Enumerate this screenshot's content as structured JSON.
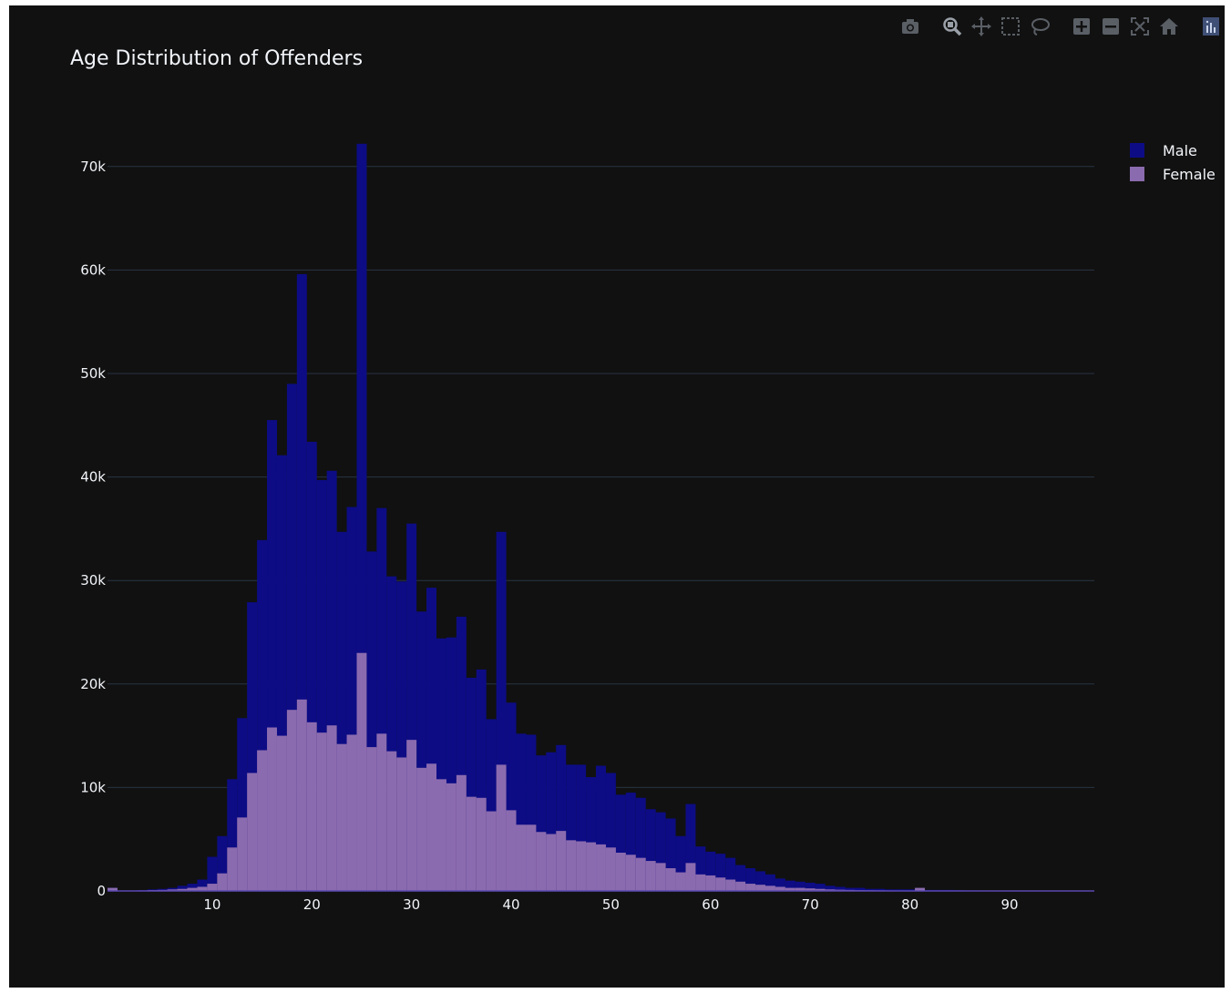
{
  "colors": {
    "background": "#111111",
    "grid": "#283442",
    "text": "#f2f5fa",
    "male": "#0d0c85",
    "female": "#8b6baf",
    "modebar_icon": "#5a5f66"
  },
  "toolbar": {
    "icons": [
      "camera-icon",
      "zoom-icon",
      "pan-icon",
      "box-select-icon",
      "lasso-select-icon",
      "zoom-in-icon",
      "zoom-out-icon",
      "autoscale-icon",
      "reset-axes-icon",
      "plotly-logo-icon"
    ]
  },
  "chart_data": {
    "type": "bar",
    "title": "Age Distribution of Offenders",
    "xlabel": "",
    "ylabel": "",
    "barmode": "overlay",
    "xlim": [
      0,
      99
    ],
    "ylim": [
      0,
      75000
    ],
    "x_ticks": [
      10,
      20,
      30,
      40,
      50,
      60,
      70,
      80,
      90
    ],
    "y_ticks": [
      0,
      10000,
      20000,
      30000,
      40000,
      50000,
      60000,
      70000
    ],
    "y_tick_labels": [
      "0",
      "10k",
      "20k",
      "30k",
      "40k",
      "50k",
      "60k",
      "70k"
    ],
    "grid": true,
    "legend_position": "top-right",
    "x": [
      0,
      1,
      2,
      3,
      4,
      5,
      6,
      7,
      8,
      9,
      10,
      11,
      12,
      13,
      14,
      15,
      16,
      17,
      18,
      19,
      20,
      21,
      22,
      23,
      24,
      25,
      26,
      27,
      28,
      29,
      30,
      31,
      32,
      33,
      34,
      35,
      36,
      37,
      38,
      39,
      40,
      41,
      42,
      43,
      44,
      45,
      46,
      47,
      48,
      49,
      50,
      51,
      52,
      53,
      54,
      55,
      56,
      57,
      58,
      59,
      60,
      61,
      62,
      63,
      64,
      65,
      66,
      67,
      68,
      69,
      70,
      71,
      72,
      73,
      74,
      75,
      76,
      77,
      78,
      79,
      80,
      81,
      82,
      83,
      84,
      85,
      86,
      87,
      88,
      89,
      90,
      91,
      92,
      93,
      94,
      95,
      96,
      97,
      98
    ],
    "series": [
      {
        "name": "Male",
        "values": [
          300,
          50,
          50,
          80,
          150,
          200,
          300,
          500,
          700,
          1100,
          3300,
          5300,
          10800,
          16700,
          27900,
          33900,
          45500,
          42100,
          49000,
          59600,
          43400,
          39700,
          40600,
          34700,
          37100,
          72200,
          32800,
          37000,
          30400,
          29900,
          35500,
          27000,
          29300,
          24400,
          24500,
          26500,
          20600,
          21400,
          16600,
          34700,
          18200,
          15200,
          15100,
          13100,
          13400,
          14100,
          12200,
          12200,
          11000,
          12100,
          11400,
          9300,
          9500,
          9000,
          7900,
          7600,
          7000,
          5300,
          8400,
          4300,
          3800,
          3600,
          3200,
          2500,
          2200,
          1900,
          1600,
          1200,
          1000,
          900,
          800,
          700,
          500,
          400,
          300,
          300,
          200,
          200,
          150,
          150,
          150,
          200,
          100,
          100,
          100,
          80,
          60,
          50,
          40,
          30,
          25,
          20,
          15,
          15,
          10,
          10,
          10,
          10,
          10
        ],
        "color": "#0d0c85"
      },
      {
        "name": "Female",
        "values": [
          300,
          30,
          30,
          50,
          80,
          100,
          150,
          200,
          300,
          400,
          700,
          1700,
          4200,
          7100,
          11400,
          13600,
          15800,
          15000,
          17500,
          18500,
          16300,
          15300,
          16000,
          14200,
          15100,
          23000,
          13900,
          15200,
          13500,
          12900,
          14600,
          11900,
          12300,
          10800,
          10400,
          11200,
          9100,
          9000,
          7700,
          12200,
          7800,
          6400,
          6400,
          5700,
          5500,
          5800,
          4900,
          4800,
          4700,
          4500,
          4200,
          3700,
          3500,
          3200,
          2900,
          2700,
          2200,
          1800,
          2700,
          1600,
          1500,
          1300,
          1100,
          900,
          700,
          600,
          500,
          400,
          300,
          300,
          250,
          200,
          150,
          120,
          100,
          80,
          70,
          60,
          50,
          40,
          30,
          300,
          20,
          20,
          15,
          15,
          10,
          10,
          10,
          10,
          10,
          10,
          10,
          10,
          10,
          10,
          10,
          10,
          10
        ],
        "color": "#8b6baf"
      }
    ]
  }
}
